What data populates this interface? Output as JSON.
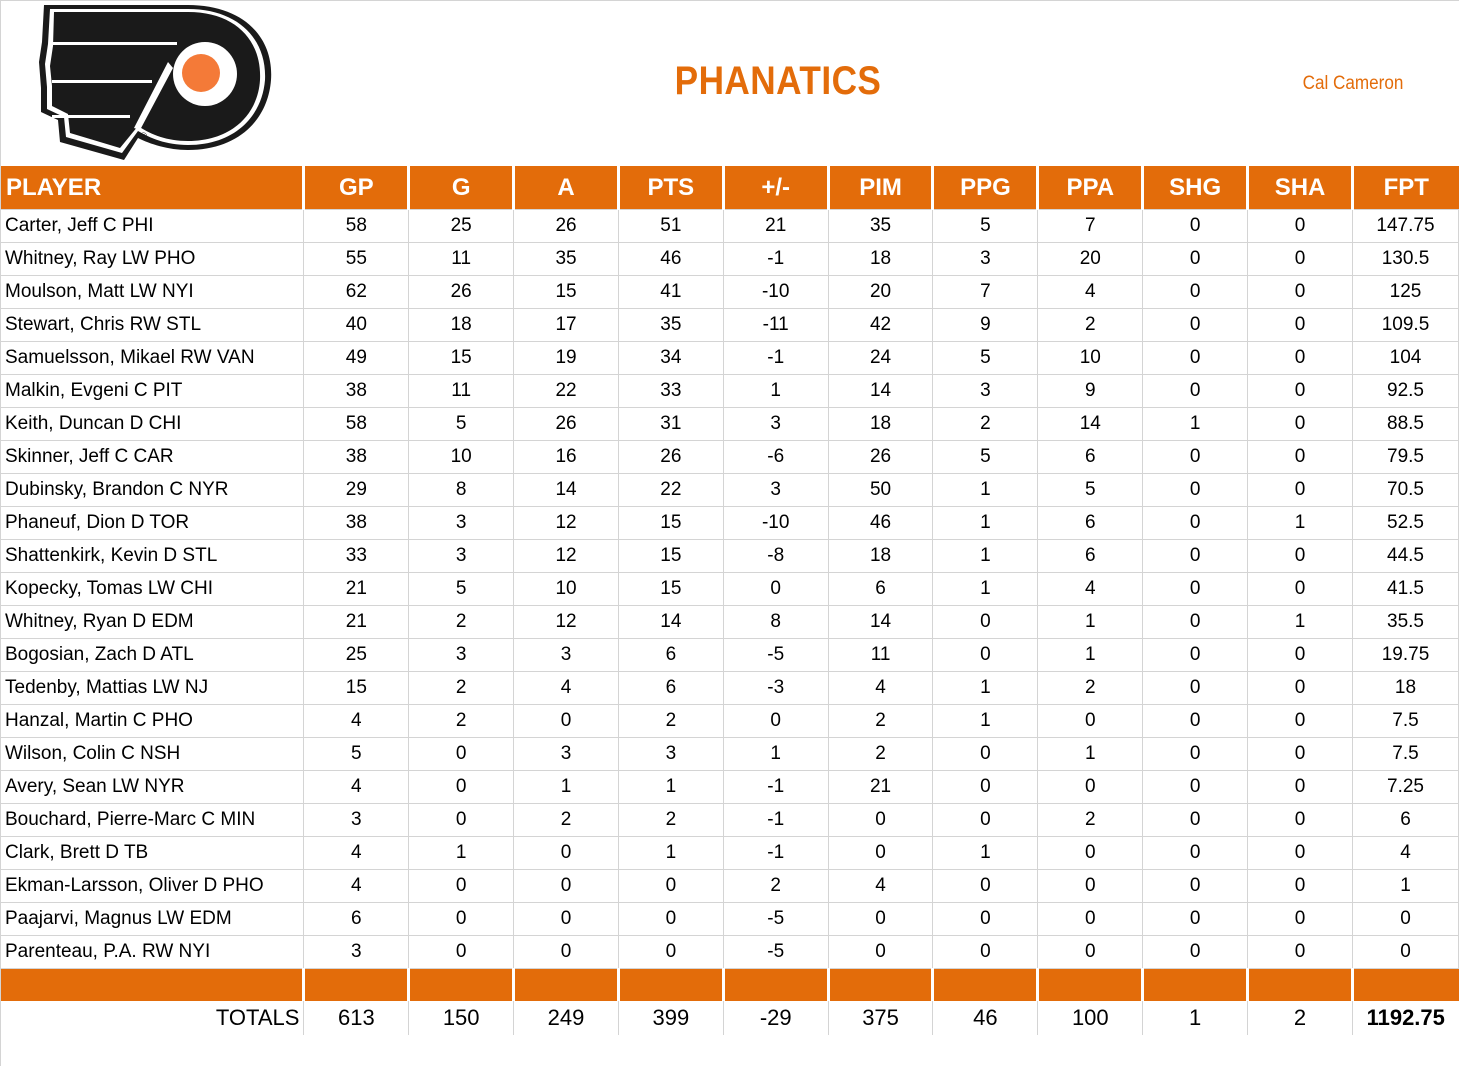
{
  "header": {
    "logo": "flyers-logo",
    "team_name": "PHANATICS",
    "owner": "Cal Cameron"
  },
  "colors": {
    "accent": "#e36c0a",
    "logo_black": "#1a1a1a",
    "logo_orange": "#f47a38",
    "grid": "#d4d4d4"
  },
  "table": {
    "columns": [
      "PLAYER",
      "GP",
      "G",
      "A",
      "PTS",
      "+/-",
      "PIM",
      "PPG",
      "PPA",
      "SHG",
      "SHA",
      "FPT"
    ],
    "rows": [
      [
        "Carter, Jeff C PHI",
        "58",
        "25",
        "26",
        "51",
        "21",
        "35",
        "5",
        "7",
        "0",
        "0",
        "147.75"
      ],
      [
        "Whitney, Ray LW PHO",
        "55",
        "11",
        "35",
        "46",
        "-1",
        "18",
        "3",
        "20",
        "0",
        "0",
        "130.5"
      ],
      [
        "Moulson, Matt LW NYI",
        "62",
        "26",
        "15",
        "41",
        "-10",
        "20",
        "7",
        "4",
        "0",
        "0",
        "125"
      ],
      [
        "Stewart, Chris RW STL",
        "40",
        "18",
        "17",
        "35",
        "-11",
        "42",
        "9",
        "2",
        "0",
        "0",
        "109.5"
      ],
      [
        "Samuelsson, Mikael RW VAN",
        "49",
        "15",
        "19",
        "34",
        "-1",
        "24",
        "5",
        "10",
        "0",
        "0",
        "104"
      ],
      [
        "Malkin, Evgeni C PIT",
        "38",
        "11",
        "22",
        "33",
        "1",
        "14",
        "3",
        "9",
        "0",
        "0",
        "92.5"
      ],
      [
        "Keith, Duncan D CHI",
        "58",
        "5",
        "26",
        "31",
        "3",
        "18",
        "2",
        "14",
        "1",
        "0",
        "88.5"
      ],
      [
        "Skinner, Jeff C CAR",
        "38",
        "10",
        "16",
        "26",
        "-6",
        "26",
        "5",
        "6",
        "0",
        "0",
        "79.5"
      ],
      [
        "Dubinsky, Brandon C NYR",
        "29",
        "8",
        "14",
        "22",
        "3",
        "50",
        "1",
        "5",
        "0",
        "0",
        "70.5"
      ],
      [
        "Phaneuf, Dion D TOR",
        "38",
        "3",
        "12",
        "15",
        "-10",
        "46",
        "1",
        "6",
        "0",
        "1",
        "52.5"
      ],
      [
        "Shattenkirk, Kevin D STL",
        "33",
        "3",
        "12",
        "15",
        "-8",
        "18",
        "1",
        "6",
        "0",
        "0",
        "44.5"
      ],
      [
        "Kopecky, Tomas LW CHI",
        "21",
        "5",
        "10",
        "15",
        "0",
        "6",
        "1",
        "4",
        "0",
        "0",
        "41.5"
      ],
      [
        "Whitney, Ryan D EDM",
        "21",
        "2",
        "12",
        "14",
        "8",
        "14",
        "0",
        "1",
        "0",
        "1",
        "35.5"
      ],
      [
        "Bogosian, Zach D ATL",
        "25",
        "3",
        "3",
        "6",
        "-5",
        "11",
        "0",
        "1",
        "0",
        "0",
        "19.75"
      ],
      [
        "Tedenby, Mattias LW NJ",
        "15",
        "2",
        "4",
        "6",
        "-3",
        "4",
        "1",
        "2",
        "0",
        "0",
        "18"
      ],
      [
        "Hanzal, Martin C PHO",
        "4",
        "2",
        "0",
        "2",
        "0",
        "2",
        "1",
        "0",
        "0",
        "0",
        "7.5"
      ],
      [
        "Wilson, Colin C NSH",
        "5",
        "0",
        "3",
        "3",
        "1",
        "2",
        "0",
        "1",
        "0",
        "0",
        "7.5"
      ],
      [
        "Avery, Sean LW NYR",
        "4",
        "0",
        "1",
        "1",
        "-1",
        "21",
        "0",
        "0",
        "0",
        "0",
        "7.25"
      ],
      [
        "Bouchard, Pierre-Marc C MIN",
        "3",
        "0",
        "2",
        "2",
        "-1",
        "0",
        "0",
        "2",
        "0",
        "0",
        "6"
      ],
      [
        "Clark, Brett D TB",
        "4",
        "1",
        "0",
        "1",
        "-1",
        "0",
        "1",
        "0",
        "0",
        "0",
        "4"
      ],
      [
        "Ekman-Larsson, Oliver D PHO",
        "4",
        "0",
        "0",
        "0",
        "2",
        "4",
        "0",
        "0",
        "0",
        "0",
        "1"
      ],
      [
        "Paajarvi, Magnus LW EDM",
        "6",
        "0",
        "0",
        "0",
        "-5",
        "0",
        "0",
        "0",
        "0",
        "0",
        "0"
      ],
      [
        "Parenteau, P.A. RW NYI",
        "3",
        "0",
        "0",
        "0",
        "-5",
        "0",
        "0",
        "0",
        "0",
        "0",
        "0"
      ]
    ],
    "totals": [
      "TOTALS",
      "613",
      "150",
      "249",
      "399",
      "-29",
      "375",
      "46",
      "100",
      "1",
      "2",
      "1192.75"
    ]
  }
}
